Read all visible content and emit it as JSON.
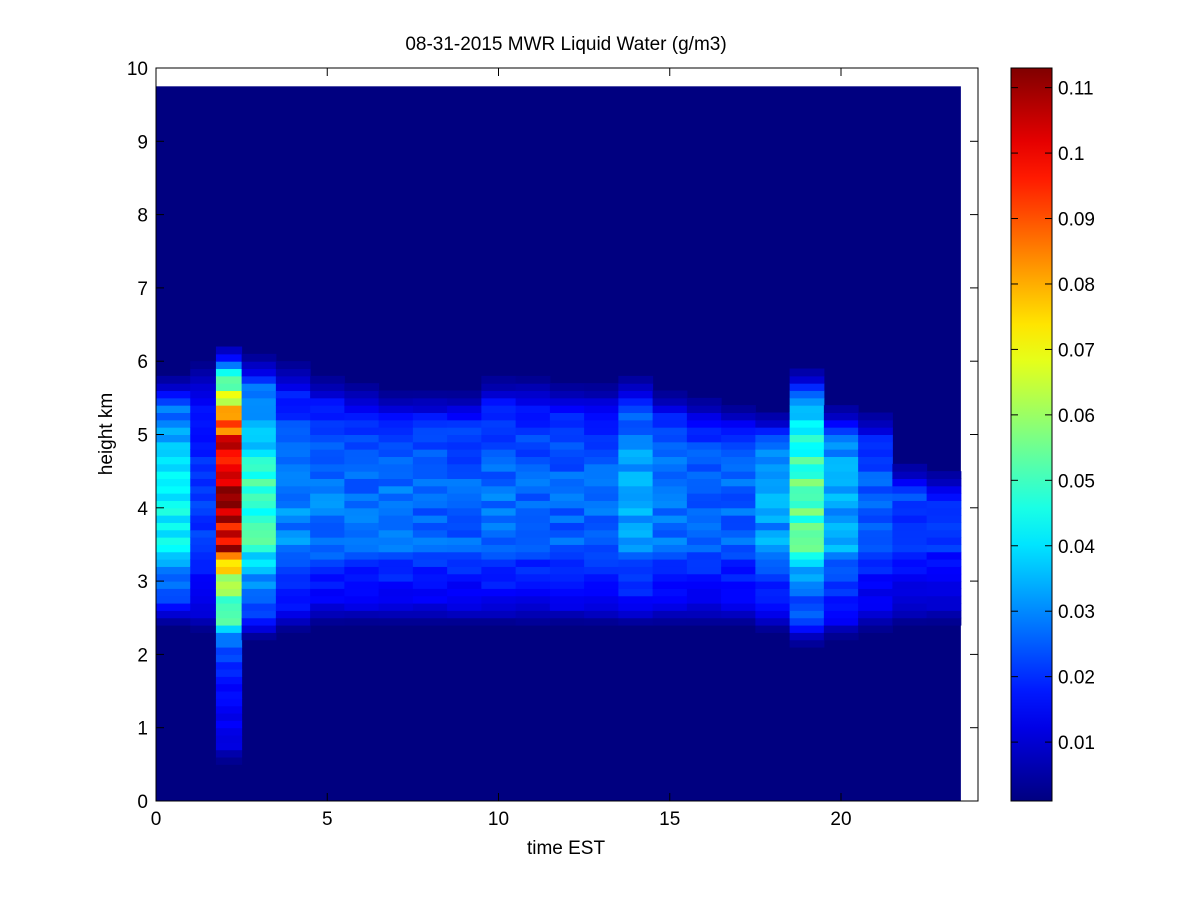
{
  "chart_data": {
    "type": "heatmap",
    "title": "08-31-2015 MWR Liquid Water (g/m3)",
    "xlabel": "time EST",
    "ylabel": "height km",
    "xlim": [
      0,
      24
    ],
    "ylim": [
      0,
      10
    ],
    "x_ticks": [
      "0",
      "5",
      "10",
      "15",
      "20"
    ],
    "y_ticks": [
      "0",
      "1",
      "2",
      "3",
      "4",
      "5",
      "6",
      "7",
      "8",
      "9",
      "10"
    ],
    "data_x_extent": [
      0,
      23.5
    ],
    "data_y_extent": [
      0,
      9.75
    ],
    "time_step_hours": 1,
    "height_step_km": 0.1,
    "colormap": "jet",
    "colorbar": {
      "range": [
        0.001,
        0.113
      ],
      "ticks": [
        "0.01",
        "0.02",
        "0.03",
        "0.04",
        "0.05",
        "0.06",
        "0.07",
        "0.08",
        "0.09",
        "0.1",
        "0.11"
      ]
    },
    "columns": [
      {
        "t": 0.5,
        "base": 0.005,
        "top": 5.8,
        "bot": 2.4,
        "peak": 4.1,
        "max": 0.043
      },
      {
        "t": 1.5,
        "base": 0.006,
        "top": 6.0,
        "bot": 2.3,
        "peak": 4.1,
        "max": 0.022
      },
      {
        "t": 2.0,
        "base": 0.012,
        "top": 6.2,
        "bot": 0.5,
        "peak": 4.15,
        "max": 0.113
      },
      {
        "t": 3.0,
        "base": 0.008,
        "top": 6.1,
        "bot": 2.2,
        "peak": 4.1,
        "max": 0.048
      },
      {
        "t": 4.0,
        "base": 0.006,
        "top": 6.0,
        "bot": 2.3,
        "peak": 4.1,
        "max": 0.03
      },
      {
        "t": 5.0,
        "base": 0.005,
        "top": 5.8,
        "bot": 2.4,
        "peak": 4.1,
        "max": 0.028
      },
      {
        "t": 6.0,
        "base": 0.005,
        "top": 5.7,
        "bot": 2.4,
        "peak": 4.1,
        "max": 0.027
      },
      {
        "t": 7.0,
        "base": 0.005,
        "top": 5.6,
        "bot": 2.4,
        "peak": 4.1,
        "max": 0.027
      },
      {
        "t": 8.0,
        "base": 0.005,
        "top": 5.6,
        "bot": 2.4,
        "peak": 4.1,
        "max": 0.026
      },
      {
        "t": 9.0,
        "base": 0.005,
        "top": 5.6,
        "bot": 2.4,
        "peak": 4.1,
        "max": 0.026
      },
      {
        "t": 10.0,
        "base": 0.005,
        "top": 5.8,
        "bot": 2.4,
        "peak": 4.1,
        "max": 0.027
      },
      {
        "t": 11.0,
        "base": 0.005,
        "top": 5.8,
        "bot": 2.4,
        "peak": 4.1,
        "max": 0.026
      },
      {
        "t": 12.0,
        "base": 0.005,
        "top": 5.7,
        "bot": 2.4,
        "peak": 4.1,
        "max": 0.026
      },
      {
        "t": 13.0,
        "base": 0.005,
        "top": 5.7,
        "bot": 2.4,
        "peak": 4.1,
        "max": 0.026
      },
      {
        "t": 14.0,
        "base": 0.006,
        "top": 5.8,
        "bot": 2.4,
        "peak": 4.15,
        "max": 0.034
      },
      {
        "t": 15.0,
        "base": 0.005,
        "top": 5.6,
        "bot": 2.4,
        "peak": 4.1,
        "max": 0.028
      },
      {
        "t": 16.0,
        "base": 0.005,
        "top": 5.5,
        "bot": 2.4,
        "peak": 4.1,
        "max": 0.026
      },
      {
        "t": 17.0,
        "base": 0.005,
        "top": 5.4,
        "bot": 2.4,
        "peak": 4.1,
        "max": 0.026
      },
      {
        "t": 18.0,
        "base": 0.005,
        "top": 5.3,
        "bot": 2.3,
        "peak": 4.1,
        "max": 0.032
      },
      {
        "t": 19.0,
        "base": 0.008,
        "top": 5.9,
        "bot": 2.1,
        "peak": 4.15,
        "max": 0.052
      },
      {
        "t": 20.0,
        "base": 0.006,
        "top": 5.4,
        "bot": 2.2,
        "peak": 4.1,
        "max": 0.034
      },
      {
        "t": 21.0,
        "base": 0.005,
        "top": 5.3,
        "bot": 2.3,
        "peak": 4.1,
        "max": 0.025
      },
      {
        "t": 22.0,
        "base": 0.004,
        "top": 4.6,
        "bot": 2.4,
        "peak": 4.1,
        "max": 0.022
      },
      {
        "t": 23.0,
        "base": 0.004,
        "top": 4.5,
        "bot": 2.4,
        "peak": 4.1,
        "max": 0.02
      }
    ]
  }
}
